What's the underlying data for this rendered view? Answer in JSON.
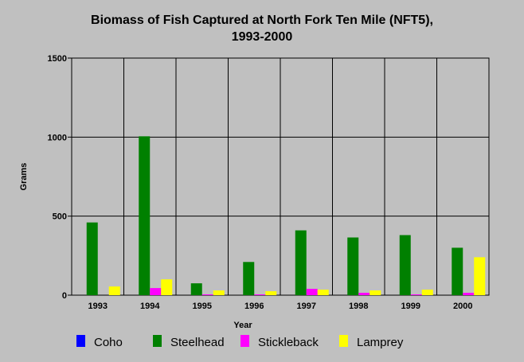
{
  "chart_data": {
    "type": "bar",
    "title_line1": "Biomass of Fish Captured at North Fork Ten Mile (NFT5),",
    "title_line2": "1993-2000",
    "xlabel": "Year",
    "ylabel": "Grams",
    "ylim": [
      0,
      1500
    ],
    "yticks": [
      "0",
      "500",
      "1000",
      "1500"
    ],
    "ytick_values": [
      0,
      500,
      1000,
      1500
    ],
    "categories": [
      "1993",
      "1994",
      "1995",
      "1996",
      "1997",
      "1998",
      "1999",
      "2000"
    ],
    "grid": true,
    "legend_position": "bottom",
    "series": [
      {
        "name": "Coho",
        "color": "#0000ff",
        "values": [
          0,
          0,
          0,
          0,
          0,
          0,
          0,
          0
        ]
      },
      {
        "name": "Steelhead",
        "color": "#008000",
        "values": [
          460,
          1005,
          75,
          210,
          410,
          365,
          380,
          300
        ]
      },
      {
        "name": "Stickleback",
        "color": "#ff00ff",
        "values": [
          0,
          45,
          5,
          5,
          40,
          15,
          5,
          15
        ]
      },
      {
        "name": "Lamprey",
        "color": "#ffff00",
        "values": [
          55,
          100,
          30,
          25,
          35,
          30,
          35,
          240
        ]
      }
    ]
  }
}
